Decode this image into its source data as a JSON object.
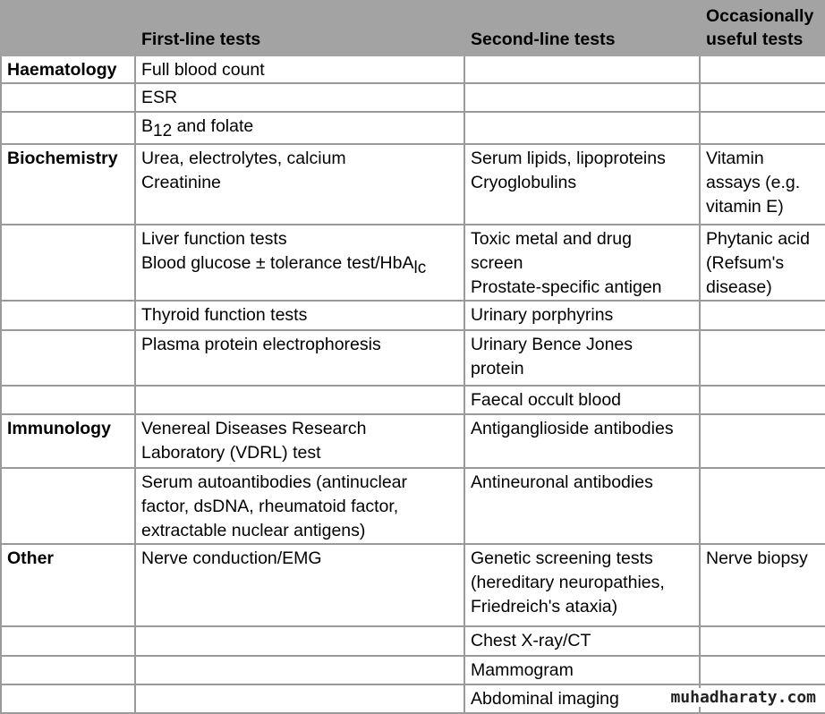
{
  "headers": [
    "",
    "First-line tests",
    "Second-line tests",
    "Occasionally useful tests"
  ],
  "rows": [
    {
      "cat": "Haematology",
      "first": [
        "Full blood count"
      ],
      "second": [],
      "occ": []
    },
    {
      "cat": "",
      "first": [
        "ESR"
      ],
      "second": [],
      "occ": []
    },
    {
      "cat": "",
      "first": [
        {
          "pre": "B",
          "sub": "12",
          "post": " and folate"
        }
      ],
      "second": [],
      "occ": []
    },
    {
      "cat": "Biochemistry",
      "first": [
        "Urea, electrolytes, calcium",
        "Creatinine"
      ],
      "second": [
        "Serum lipids, lipoproteins",
        "Cryoglobulins"
      ],
      "occ": [
        "Vitamin",
        "assays (e.g.",
        "vitamin E)"
      ]
    },
    {
      "cat": "",
      "first": [
        "Liver function tests",
        {
          "pre": "Blood glucose ± tolerance test/HbA",
          "sub": "lc",
          "post": ""
        }
      ],
      "second": [
        "Toxic metal and drug",
        "screen",
        "Prostate-specific antigen"
      ],
      "occ": [
        "Phytanic acid",
        "(Refsum's",
        "disease)"
      ]
    },
    {
      "cat": "",
      "first": [
        "Thyroid function tests"
      ],
      "second": [
        "Urinary porphyrins"
      ],
      "occ": []
    },
    {
      "cat": "",
      "first": [
        "Plasma protein electrophoresis"
      ],
      "second": [
        "Urinary Bence Jones",
        "protein"
      ],
      "occ": []
    },
    {
      "cat": "",
      "first": [],
      "second": [
        "Faecal occult blood"
      ],
      "occ": []
    },
    {
      "cat": "Immunology",
      "first": [
        "Venereal Diseases Research",
        "Laboratory (VDRL) test"
      ],
      "second": [
        "Antiganglioside antibodies"
      ],
      "occ": []
    },
    {
      "cat": "",
      "first": [
        "Serum autoantibodies (antinuclear",
        "factor, dsDNA, rheumatoid factor,",
        "extractable nuclear antigens)"
      ],
      "second": [
        "Antineuronal antibodies"
      ],
      "occ": []
    },
    {
      "cat": "Other",
      "first": [
        "Nerve conduction/EMG"
      ],
      "second": [
        "Genetic screening tests",
        "(hereditary neuropathies,",
        "Friedreich's ataxia)"
      ],
      "occ": [
        "Nerve biopsy"
      ]
    },
    {
      "cat": "",
      "first": [],
      "second": [
        "Chest X-ray/CT"
      ],
      "occ": []
    },
    {
      "cat": "",
      "first": [],
      "second": [
        "Mammogram"
      ],
      "occ": []
    },
    {
      "cat": "",
      "first": [],
      "second": [
        "Abdominal imaging"
      ],
      "occ": []
    }
  ],
  "watermark": "muhadharaty.com"
}
